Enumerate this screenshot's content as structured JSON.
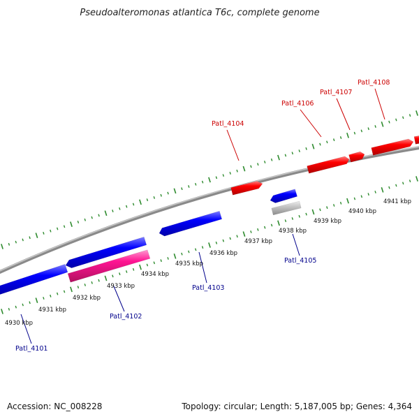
{
  "title": "Pseudoalteromonas atlantica T6c, complete genome",
  "footer": {
    "accession": "Accession: NC_008228",
    "summary": "Topology: circular; Length: 5,187,005 bp; Genes: 4,364"
  },
  "colors": {
    "backbone": "#8a8a8a",
    "tick": "#2e8b2e",
    "forward_gene": "#ff0000",
    "reverse_gene": "#0000ff",
    "pseudo_gene": "#ff1493",
    "other_gene": "#b4b4b4",
    "forward_label": "#cc0000",
    "reverse_label": "#00008b"
  },
  "kbp_labels": [
    "4930 kbp",
    "4931 kbp",
    "4932 kbp",
    "4933 kbp",
    "4934 kbp",
    "4935 kbp",
    "4936 kbp",
    "4937 kbp",
    "4938 kbp",
    "4939 kbp",
    "4940 kbp",
    "4941 kbp"
  ],
  "gene_labels": {
    "forward": [
      "Patl_4104",
      "Patl_4106",
      "Patl_4107",
      "Patl_4108"
    ],
    "reverse": [
      "Patl_4101",
      "Patl_4102",
      "Patl_4103",
      "Patl_4105"
    ]
  }
}
